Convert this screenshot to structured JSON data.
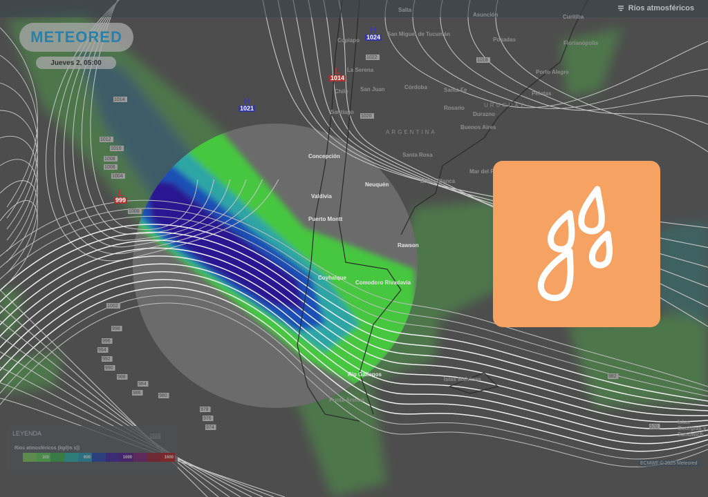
{
  "header": {
    "layer_title": "Ríos atmosféricos",
    "layer_icon": "atmospheric-river-icon"
  },
  "logo": {
    "text": "METEORED"
  },
  "forecast_time": "Jueves 2, 05:00",
  "pressure_centers": [
    {
      "type": "H",
      "value": "1024"
    },
    {
      "type": "L",
      "value": "1014"
    },
    {
      "type": "H",
      "value": "1021"
    },
    {
      "type": "L",
      "value": "999"
    }
  ],
  "isobar_labels": [
    "1014",
    "1012",
    "1010",
    "1008",
    "1006",
    "1004",
    "1000",
    "1022",
    "1020",
    "1018",
    "1002",
    "998",
    "996",
    "994",
    "992",
    "990",
    "988",
    "986",
    "984",
    "982",
    "980",
    "978",
    "976",
    "974",
    "972",
    "970"
  ],
  "cities_bright": [
    "Concepción",
    "Valdivia",
    "Neuquén",
    "Puerto Montt",
    "Rawson",
    "Coyhaique",
    "Comodoro Rivadavia",
    "Río Gallegos"
  ],
  "cities_dim": [
    "Salta",
    "Asunción",
    "San Miguel de Tucumán",
    "Copiapo",
    "Posadas",
    "Curitiba",
    "Florianópolis",
    "La Serena",
    "Chile",
    "San Juan",
    "Córdoba",
    "Santa Fe",
    "Porto Alegre",
    "Santiago",
    "Rosario",
    "Pelotas",
    "Durazno",
    "Buenos Aires",
    "Santa Rosa",
    "Mar del Plata",
    "Bahía Blanca",
    "Punta Arenas",
    "Islas Malvinas",
    "Islas Georgias y Sandwich"
  ],
  "countries": [
    "ARGENTINA",
    "URUGUAY"
  ],
  "overlay_tile": {
    "icon": "raindrops-icon",
    "color": "#f5a263"
  },
  "legend": {
    "title": "LEYENDA",
    "subtitle": "Ríos atmosféricos (kg/(m s))",
    "ticks": [
      "300",
      "600",
      "1000",
      "1600"
    ],
    "colors": [
      "#5f8a4d",
      "#4a8a4a",
      "#3a7a44",
      "#2e7d7a",
      "#2d6f80",
      "#2e3f80",
      "#3b2c75",
      "#452865",
      "#5e2a5c",
      "#6e2a33",
      "#7a2a2a"
    ]
  },
  "credit": "ECMWF © 2025 Meteored"
}
